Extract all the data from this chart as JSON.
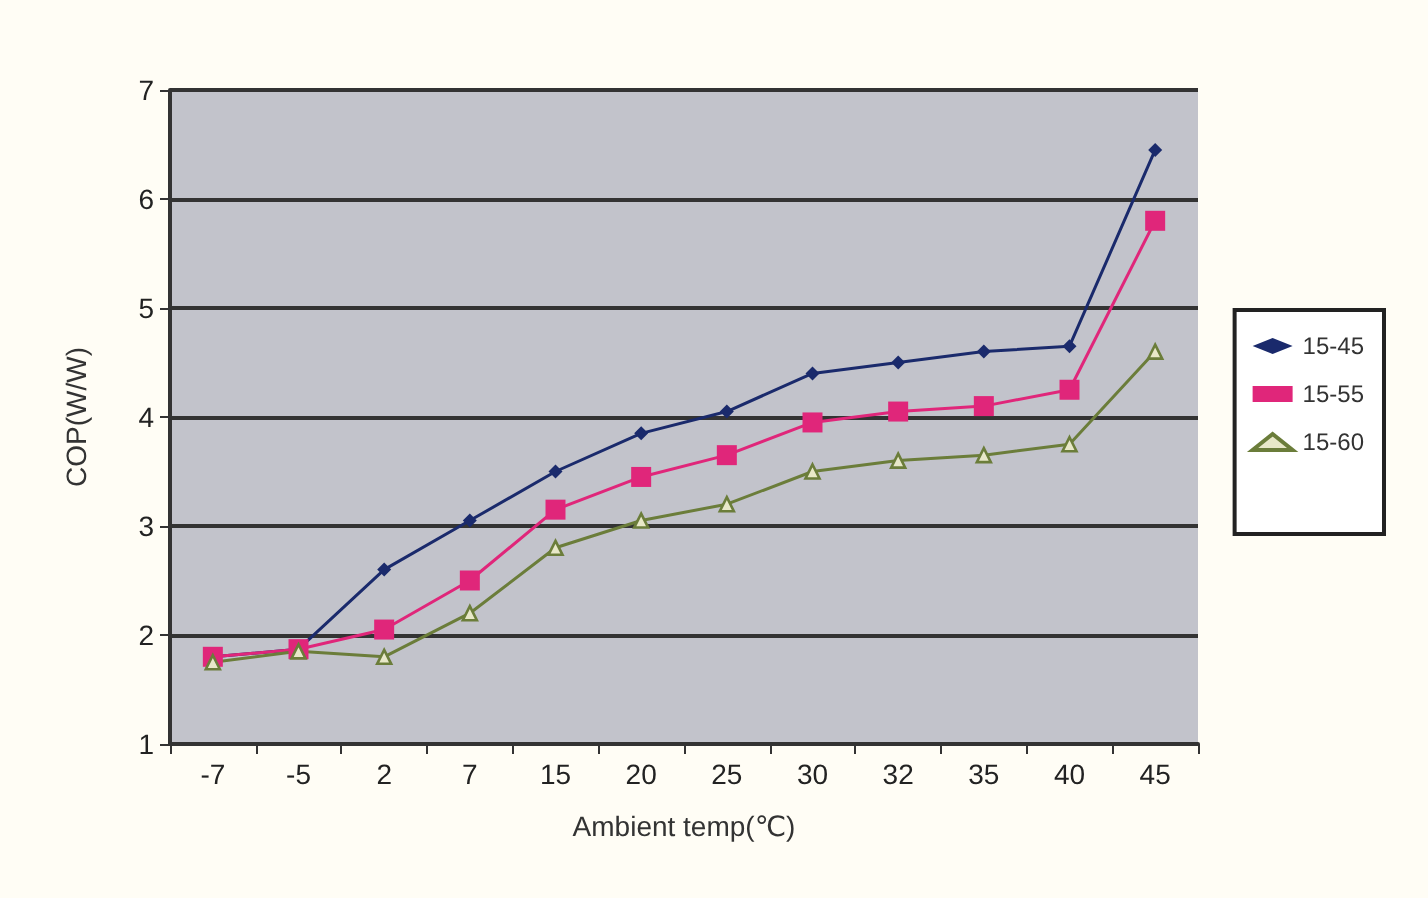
{
  "chart_data": {
    "type": "line",
    "xlabel": "Ambient temp(℃)",
    "ylabel": "COP(W/W)",
    "categories": [
      "-7",
      "-5",
      "2",
      "7",
      "15",
      "20",
      "25",
      "30",
      "32",
      "35",
      "40",
      "45"
    ],
    "series": [
      {
        "name": "15-45",
        "color": "#1a2a6c",
        "marker": "diamond",
        "values": [
          1.8,
          1.87,
          2.6,
          3.05,
          3.5,
          3.85,
          4.05,
          4.4,
          4.5,
          4.6,
          4.65,
          6.45
        ]
      },
      {
        "name": "15-55",
        "color": "#e0267a",
        "marker": "square",
        "values": [
          1.8,
          1.87,
          2.05,
          2.5,
          3.15,
          3.45,
          3.65,
          3.95,
          4.05,
          4.1,
          4.25,
          5.8
        ]
      },
      {
        "name": "15-60",
        "color": "#6b7d3a",
        "marker": "triangle",
        "values": [
          1.75,
          1.85,
          1.8,
          2.2,
          2.8,
          3.05,
          3.2,
          3.5,
          3.6,
          3.65,
          3.75,
          4.6
        ]
      }
    ],
    "ylim": [
      1,
      7
    ],
    "yticks": [
      1,
      2,
      3,
      4,
      5,
      6,
      7
    ],
    "grid": "y",
    "legend": "right",
    "line_style": "solid"
  }
}
